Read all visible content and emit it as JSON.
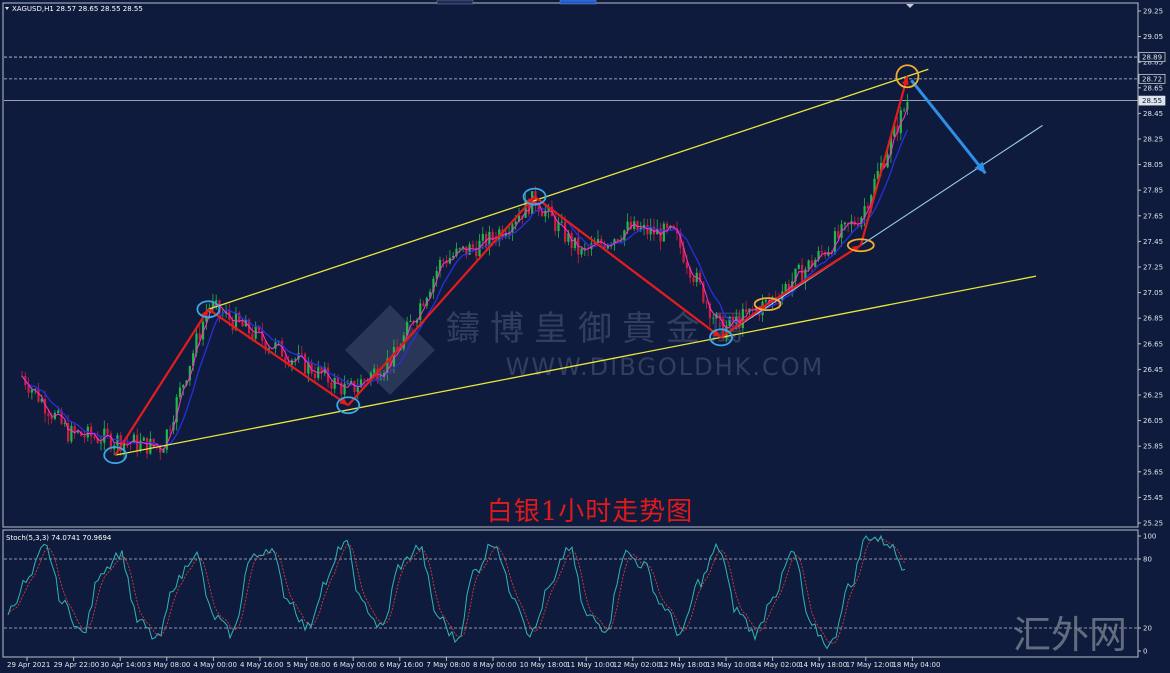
{
  "window": {
    "symbol_header": "XAGUSD,H1  28.57 28.65 28.55 28.55"
  },
  "price_panel": {
    "y_ticks": [
      "29.25",
      "29.05",
      "28.85",
      "28.65",
      "28.45",
      "28.25",
      "28.05",
      "27.85",
      "27.65",
      "27.45",
      "27.25",
      "27.05",
      "26.85",
      "26.65",
      "26.45",
      "26.25",
      "26.05",
      "25.85",
      "25.65",
      "25.45",
      "25.25"
    ],
    "price_tags": [
      {
        "value": "28.89",
        "style": "outline"
      },
      {
        "value": "28.72",
        "style": "outline"
      },
      {
        "value": "28.55",
        "style": "filled"
      }
    ],
    "caption": "白银1小时走势图",
    "watermark_cn": "鑄博皇御貴金屬",
    "watermark_url": "WWW.DIBGOLDHK.COM"
  },
  "stoch_panel": {
    "header": "Stoch(5,3,3) 74.0741 70.9694",
    "y_ticks": [
      "100",
      "80",
      "20",
      "0"
    ]
  },
  "x_axis": {
    "ticks": [
      "29 Apr 2021",
      "29 Apr 22:00",
      "30 Apr 14:00",
      "3 May 08:00",
      "4 May 00:00",
      "4 May 16:00",
      "5 May 08:00",
      "6 May 00:00",
      "6 May 16:00",
      "7 May 08:00",
      "8 May 00:00",
      "10 May 18:00",
      "11 May 10:00",
      "12 May 02:00",
      "12 May 18:00",
      "13 May 10:00",
      "14 May 02:00",
      "14 May 18:00",
      "17 May 12:00",
      "18 May 04:00"
    ]
  },
  "logo_text": "汇外网",
  "colors": {
    "background": "#0f1b3d",
    "channel": "#e8e83a",
    "arrow_red": "#e51c1c",
    "arrow_blue": "#2f8ee6",
    "support_blue": "#9ed0f5",
    "circle_blue": "#3aa7e8",
    "circle_orange": "#f0b030",
    "candle_up": "#23b845",
    "candle_down": "#cf1e3c",
    "ma_blue": "#2a2ee0",
    "ma_magenta": "#ff33cc",
    "stoch_main": "#2fb5b5",
    "stoch_signal": "#d43a3a"
  },
  "chart_data": {
    "type": "candlestick",
    "symbol": "XAGUSD",
    "timeframe": "H1",
    "header_ohlc": {
      "open": 28.57,
      "high": 28.65,
      "low": 28.55,
      "close": 28.55
    },
    "ylim": [
      25.15,
      29.35
    ],
    "x": [
      "29 Apr 2021",
      "29 Apr 22:00",
      "30 Apr 14:00",
      "3 May 08:00",
      "4 May 00:00",
      "4 May 16:00",
      "5 May 08:00",
      "6 May 00:00",
      "6 May 16:00",
      "7 May 08:00",
      "8 May 00:00",
      "10 May 18:00",
      "11 May 10:00",
      "12 May 02:00",
      "12 May 18:00",
      "13 May 10:00",
      "14 May 02:00",
      "14 May 18:00",
      "17 May 12:00",
      "18 May 04:00"
    ],
    "close_path": [
      26.4,
      25.95,
      25.9,
      25.84,
      26.95,
      26.72,
      26.5,
      26.28,
      26.55,
      27.3,
      27.45,
      27.78,
      27.35,
      27.55,
      27.5,
      26.75,
      26.97,
      27.3,
      27.65,
      28.55
    ],
    "swing_points": [
      {
        "x": "30 Apr 14:00",
        "price": 25.78,
        "marker": "blue-circle"
      },
      {
        "x": "4 May 00:00",
        "price": 26.92,
        "marker": "blue-circle"
      },
      {
        "x": "6 May 00:00",
        "price": 26.17,
        "marker": "blue-circle"
      },
      {
        "x": "10 May 18:00",
        "price": 27.8,
        "marker": "blue-circle"
      },
      {
        "x": "13 May 10:00",
        "price": 26.7,
        "marker": "blue-circle"
      },
      {
        "x": "14 May 02:00",
        "price": 26.96,
        "marker": "orange-circle"
      },
      {
        "x": "17 May 12:00",
        "price": 27.42,
        "marker": "orange-circle"
      },
      {
        "x": "18 May 04:00",
        "price": 28.74,
        "marker": "orange-circle"
      }
    ],
    "horizontal_lines": [
      28.89,
      28.72,
      28.55
    ],
    "stochastic": {
      "params": "5,3,3",
      "main": 74.0741,
      "signal": 70.9694,
      "levels": [
        80,
        20
      ],
      "ylim": [
        0,
        100
      ],
      "main_values": [
        35,
        60,
        90,
        40,
        15,
        70,
        85,
        25,
        10,
        60,
        85,
        30,
        15,
        80,
        90,
        45,
        20,
        60,
        95,
        40,
        20,
        75,
        90,
        30,
        10,
        70,
        95,
        50,
        15,
        55,
        90,
        30,
        20,
        85,
        75,
        40,
        15,
        60,
        90,
        35,
        15,
        50,
        85,
        20,
        5,
        55,
        100,
        95,
        74
      ]
    }
  }
}
